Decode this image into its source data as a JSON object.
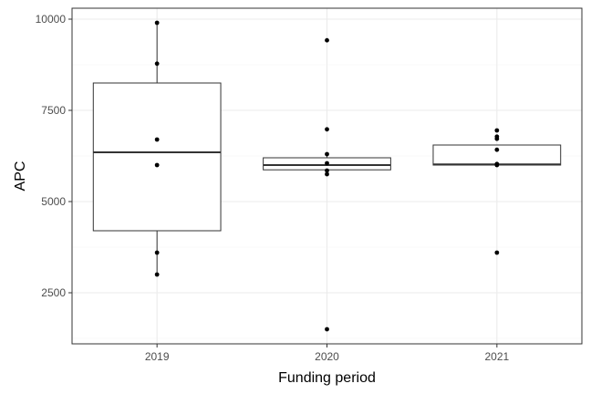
{
  "chart_data": {
    "type": "boxplot",
    "title": "",
    "xlabel": "Funding period",
    "ylabel": "APC",
    "categories": [
      "2019",
      "2020",
      "2021"
    ],
    "ylim": [
      1100,
      10300
    ],
    "yticks": [
      2500,
      5000,
      7500,
      10000
    ],
    "grid": true,
    "legend": "none",
    "boxes": [
      {
        "category": "2019",
        "whisker_low": 3000,
        "q1": 4200,
        "median": 6350,
        "q3": 8250,
        "whisker_high": 9900
      },
      {
        "category": "2020",
        "whisker_low": 5750,
        "q1": 5870,
        "median": 6000,
        "q3": 6200,
        "whisker_high": 6300
      },
      {
        "category": "2021",
        "whisker_low": 6000,
        "q1": 6000,
        "median": 6020,
        "q3": 6550,
        "whisker_high": 6550
      }
    ],
    "points": [
      {
        "category": "2019",
        "values": [
          9900,
          8780,
          6700,
          6000,
          3600,
          3000
        ]
      },
      {
        "category": "2020",
        "values": [
          9420,
          6980,
          6300,
          6050,
          5850,
          5750,
          1500
        ]
      },
      {
        "category": "2021",
        "values": [
          6950,
          6780,
          6720,
          6420,
          6030,
          6000,
          3600
        ]
      }
    ],
    "colors": {
      "panel_border": "#333333",
      "grid_major": "#ebebeb",
      "grid_minor": "#f5f5f5",
      "box": "#333333",
      "point": "#000000"
    }
  }
}
